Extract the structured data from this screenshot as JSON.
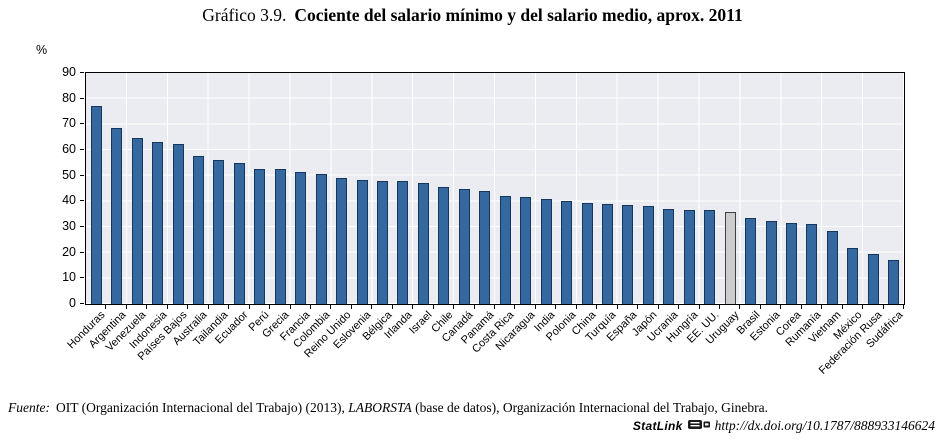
{
  "title": {
    "prefix": "Gráfico 3.9.",
    "main": "Cociente del salario mínimo y del salario medio, aprox. 2011"
  },
  "chart_data": {
    "type": "bar",
    "unit_label": "%",
    "ylim": [
      0,
      90
    ],
    "ytick_step": 10,
    "grid": true,
    "legend": "none",
    "categories": [
      "Honduras",
      "Argentina",
      "Venezuela",
      "Indonesia",
      "Países Bajos",
      "Australia",
      "Tailandia",
      "Ecuador",
      "Perú",
      "Grecia",
      "Francia",
      "Colombia",
      "Reino Unido",
      "Eslovenia",
      "Bélgica",
      "Irlanda",
      "Israel",
      "Chile",
      "Canadá",
      "Panamá",
      "Costa Rica",
      "Nicaragua",
      "India",
      "Polonia",
      "China",
      "Turquía",
      "España",
      "Japón",
      "Ucrania",
      "Hungría",
      "EE. UU.",
      "Uruguay",
      "Brasil",
      "Estonia",
      "Corea",
      "Rumanía",
      "Vietnam",
      "México",
      "Federación Rusa",
      "Sudáfrica"
    ],
    "values": [
      77,
      68.5,
      64.5,
      63,
      62.5,
      57.5,
      56,
      55,
      52.5,
      52.5,
      51.5,
      50.5,
      49,
      48.5,
      48,
      48,
      47,
      45.5,
      45,
      44,
      42,
      41.5,
      41,
      40,
      39.5,
      39,
      38.5,
      38,
      37,
      36.5,
      36.5,
      36,
      33.5,
      32.5,
      31.5,
      31,
      28.5,
      22,
      19.5,
      17
    ],
    "highlight_category": "Uruguay",
    "bar_color": "#35689e",
    "bar_border": "#16375d",
    "highlight_color": "#cccccc",
    "highlight_border": "#404040",
    "plot_bg": "#ebecf1",
    "gridline_color": "#ffffff"
  },
  "footer": {
    "source_label": "Fuente:",
    "source_pre": "OIT (Organización Internacional del Trabajo) (2013), ",
    "source_em": "LABORSTA",
    "source_post": " (base de datos), Organización Internacional del Trabajo, Ginebra.",
    "statlink_label": "StatLink",
    "statlink_icon": "statlink-dissemination-icon",
    "statlink_url": "http://dx.doi.org/10.1787/888933146624"
  }
}
